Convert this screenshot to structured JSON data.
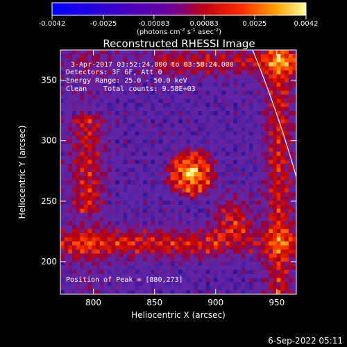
{
  "chart_data": {
    "type": "heatmap",
    "title": "Reconstructed RHESSI Image",
    "xlabel": "Heliocentric X (arcsec)",
    "ylabel": "Heliocentric Y (arcsec)",
    "xlim": [
      773,
      966
    ],
    "ylim": [
      173,
      375
    ],
    "xticks": [
      800,
      850,
      900,
      950
    ],
    "yticks": [
      200,
      250,
      300,
      350
    ],
    "colorbar": {
      "ticks": [
        -0.0042,
        -0.0025,
        -0.00083,
        0.00083,
        0.0025,
        0.0042
      ],
      "tick_labels": [
        "-0.0042",
        "-0.0025",
        "-0.00083",
        "0.00083",
        "0.0025",
        "0.0042"
      ],
      "range": [
        -0.0042,
        0.0042
      ],
      "unit_prefix": "(photons cm",
      "unit_exp1": "-2",
      "unit_mid1": " s",
      "unit_exp2": "-1",
      "unit_mid2": " asec",
      "unit_exp3": "-2",
      "unit_suffix": ")"
    },
    "peak": [
      880,
      273
    ],
    "annotations": {
      "time_range": "3-Apr-2017 03:52:24.000 to 03:58:24.000",
      "detectors": "Detectors: 3F 6F, Att 0",
      "energy": "Energy Range: 25.0 - 50.0 keV",
      "clean": "Clean    Total counts: 9.58E+03",
      "peak_text": "Position of Peak = [880,273]"
    },
    "limb_color": "#ffffff"
  },
  "footer": "6-Sep-2022 05:11"
}
